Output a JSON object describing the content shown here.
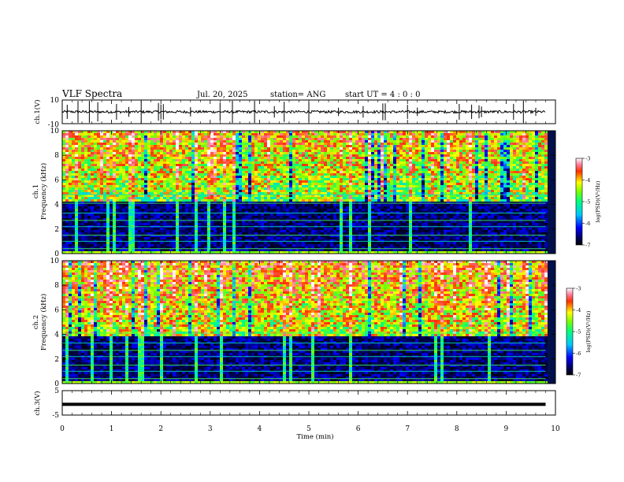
{
  "header": {
    "title": "VLF Spectra",
    "date": "Jul. 20, 2025",
    "station": "station= ANG",
    "start_ut": "start UT =  4 : 0  : 0"
  },
  "x_axis": {
    "label": "Time (min)",
    "ticks": [
      "0",
      "1",
      "2",
      "3",
      "4",
      "5",
      "6",
      "7",
      "8",
      "9",
      "10"
    ],
    "range": [
      0,
      10
    ],
    "data_end": 9.8
  },
  "colors": {
    "colormap": [
      "#000000",
      "#00005a",
      "#0000ff",
      "#00c8ff",
      "#00ff80",
      "#80ff00",
      "#ffff00",
      "#ff3000",
      "#ff80a0",
      "#ffffff"
    ],
    "spectrogram_background": "#00104a"
  },
  "chart_data": [
    {
      "type": "line",
      "name": "ch.1 waveform",
      "ylabel": "ch.1(V)",
      "yticks": [
        "10",
        "-10"
      ],
      "ylim": [
        -10,
        10
      ],
      "xlim": [
        0,
        10
      ],
      "baseline_v": 0,
      "spikes_min": [
        0.1,
        0.32,
        0.55,
        0.72,
        1.1,
        1.35,
        1.6,
        1.95,
        2.0,
        2.05,
        2.6,
        3.2,
        3.45,
        3.9,
        4.3,
        4.5,
        5.0,
        5.6,
        6.1,
        6.5,
        6.55,
        7.0,
        7.2,
        8.05,
        8.3,
        8.45,
        8.5,
        9.15,
        9.35,
        9.6
      ]
    },
    {
      "type": "heatmap",
      "name": "ch.1 spectrogram",
      "ylabel_channel": "ch.1",
      "ylabel": "Frequency (kHz)",
      "yticks": [
        "0",
        "2",
        "4",
        "6",
        "8",
        "10"
      ],
      "ylim": [
        0,
        10
      ],
      "xlim": [
        0,
        10
      ],
      "colorbar_label": "log(PSD)(V²/Hz)",
      "colorbar_ticks": [
        "-3",
        "-4",
        "-5",
        "-6",
        "-7"
      ],
      "colorbar_range": [
        -7,
        -3
      ],
      "narrowband_lines_khz": [
        0.4,
        1.0,
        1.5,
        2.2,
        2.7,
        3.3,
        4.1,
        4.8
      ],
      "low_band_top_khz": 4.2,
      "background_psd": -6.5,
      "high_band_psd": -4.5
    },
    {
      "type": "heatmap",
      "name": "ch.2 spectrogram",
      "ylabel_channel": "ch.2",
      "ylabel": "Frequency (kHz)",
      "yticks": [
        "0",
        "2",
        "4",
        "6",
        "8",
        "10"
      ],
      "ylim": [
        0,
        10
      ],
      "xlim": [
        0,
        10
      ],
      "colorbar_label": "log(PSD)(V²/Hz)",
      "colorbar_ticks": [
        "-3",
        "-4",
        "-5",
        "-6",
        "-7"
      ],
      "colorbar_range": [
        -7,
        -3
      ],
      "narrowband_lines_khz": [
        0.4,
        1.0,
        1.5,
        2.2,
        2.7,
        3.3,
        4.1
      ],
      "low_band_top_khz": 3.8,
      "background_psd": -6.5,
      "high_band_psd": -4.3
    },
    {
      "type": "line",
      "name": "ch.3 waveform",
      "ylabel": "ch.3(V)",
      "yticks": [
        "5",
        "-5"
      ],
      "ylim": [
        -5,
        5
      ],
      "xlim": [
        0,
        10
      ],
      "constant_v": -0.6
    }
  ]
}
